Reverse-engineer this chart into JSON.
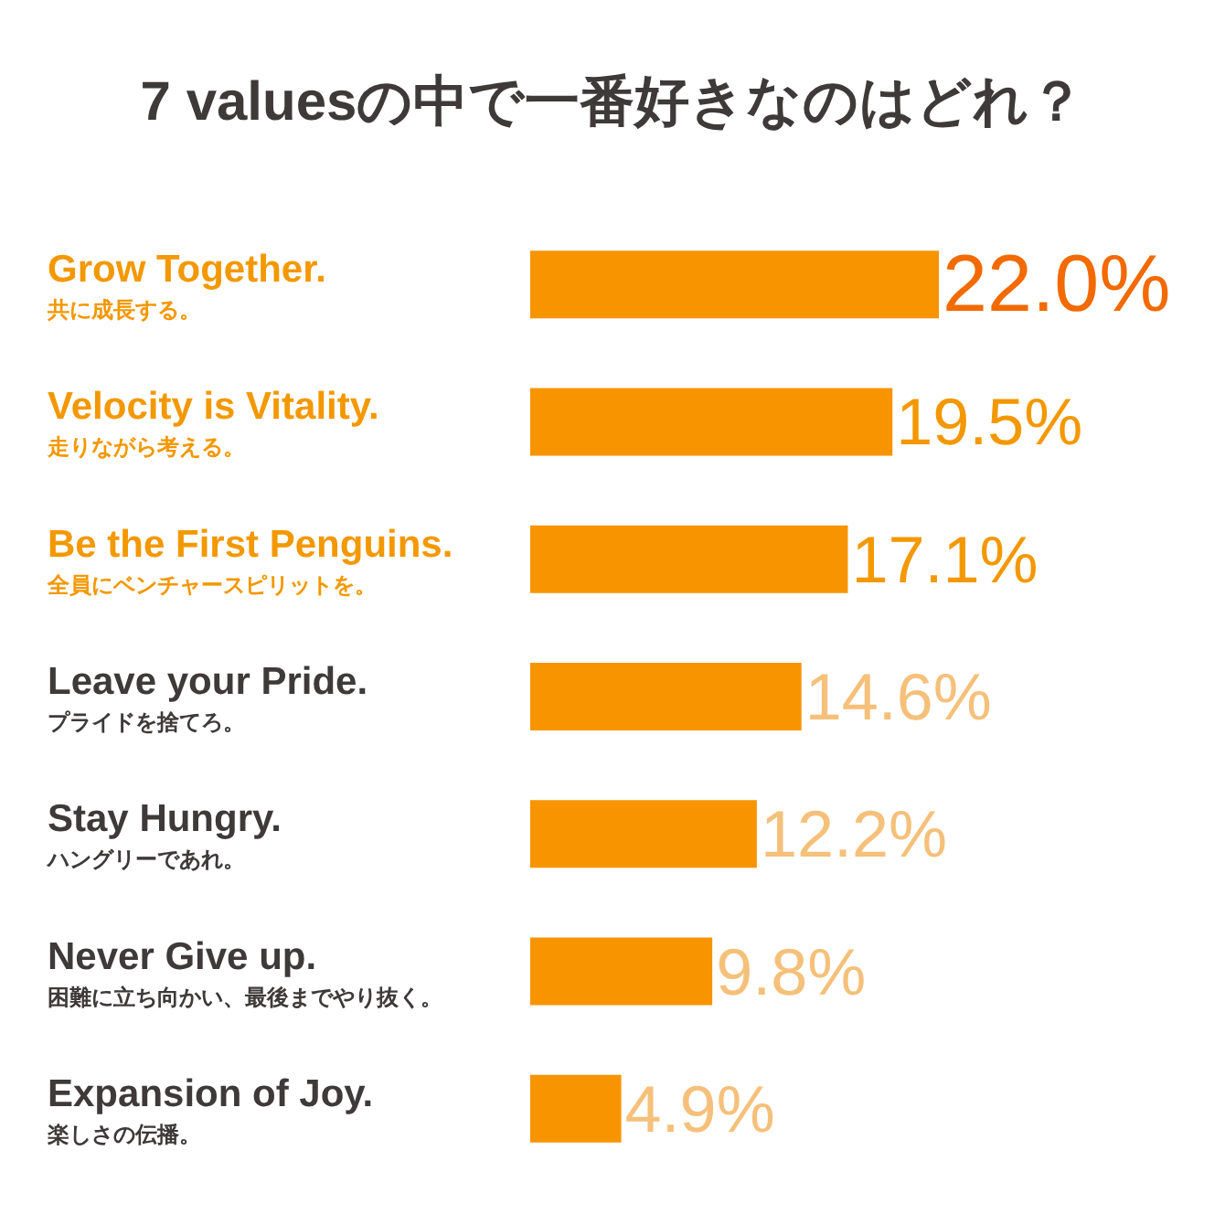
{
  "chart_data": {
    "type": "bar",
    "orientation": "horizontal",
    "title": "7 valuesの中で一番好きなのはどれ？",
    "categories": [
      "Grow Together.\n共に成長する。",
      "Velocity is Vitality.\n走りながら考える。",
      "Be the First Penguins.\n全員にベンチャースピリットを。",
      "Leave your Pride.\nプライドを捨てろ。",
      "Stay Hungry.\nハングリーであれ。",
      "Never Give up.\n困難に立ち向かい、最後までやり抜く。",
      "Expansion of Joy.\n楽しさの伝播。"
    ],
    "values": [
      22.0,
      19.5,
      17.1,
      14.6,
      12.2,
      9.8,
      4.9
    ],
    "value_labels": [
      "22.0%",
      "19.5%",
      "17.1%",
      "14.6%",
      "12.2%",
      "9.8%",
      "4.9%"
    ],
    "color": "#f79400",
    "grid": false
  }
}
